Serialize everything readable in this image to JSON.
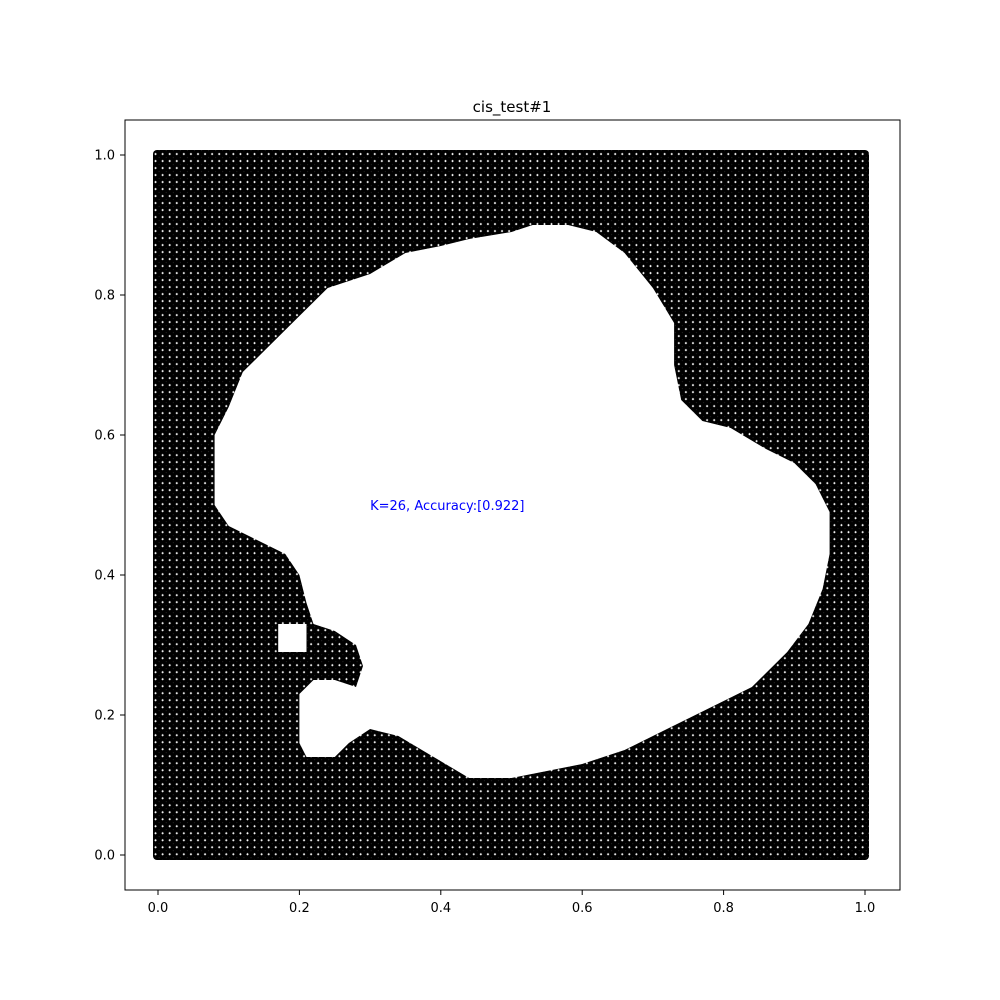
{
  "chart_data": {
    "type": "scatter",
    "title": "cis_test#1",
    "xlabel": "",
    "ylabel": "",
    "xlim": [
      -0.05,
      1.05
    ],
    "ylim": [
      -0.05,
      1.05
    ],
    "grid": false,
    "x_ticks": [
      "0.0",
      "0.2",
      "0.4",
      "0.6",
      "0.8",
      "1.0"
    ],
    "y_ticks": [
      "0.0",
      "0.2",
      "0.4",
      "0.6",
      "0.8",
      "1.0"
    ],
    "annotation": {
      "text": "K=26, Accuracy:[0.922]",
      "x": 0.3,
      "y": 0.5,
      "color": "#0000ff"
    },
    "description_of_series": {
      "class_black": "#000000",
      "class_white": "#ffffff",
      "grid_step": 0.01,
      "grid_range": [
        0.0,
        1.0
      ]
    },
    "boundary_white_region": [
      [
        0.08,
        0.6
      ],
      [
        0.1,
        0.64
      ],
      [
        0.12,
        0.69
      ],
      [
        0.15,
        0.72
      ],
      [
        0.2,
        0.77
      ],
      [
        0.24,
        0.81
      ],
      [
        0.3,
        0.83
      ],
      [
        0.35,
        0.86
      ],
      [
        0.4,
        0.87
      ],
      [
        0.44,
        0.88
      ],
      [
        0.5,
        0.89
      ],
      [
        0.53,
        0.9
      ],
      [
        0.58,
        0.9
      ],
      [
        0.62,
        0.89
      ],
      [
        0.66,
        0.86
      ],
      [
        0.7,
        0.81
      ],
      [
        0.73,
        0.76
      ],
      [
        0.73,
        0.7
      ],
      [
        0.74,
        0.65
      ],
      [
        0.77,
        0.62
      ],
      [
        0.81,
        0.61
      ],
      [
        0.86,
        0.58
      ],
      [
        0.9,
        0.56
      ],
      [
        0.93,
        0.53
      ],
      [
        0.95,
        0.49
      ],
      [
        0.95,
        0.43
      ],
      [
        0.94,
        0.38
      ],
      [
        0.92,
        0.33
      ],
      [
        0.89,
        0.29
      ],
      [
        0.84,
        0.24
      ],
      [
        0.78,
        0.21
      ],
      [
        0.72,
        0.18
      ],
      [
        0.66,
        0.15
      ],
      [
        0.6,
        0.13
      ],
      [
        0.55,
        0.12
      ],
      [
        0.5,
        0.11
      ],
      [
        0.44,
        0.11
      ],
      [
        0.39,
        0.14
      ],
      [
        0.34,
        0.17
      ],
      [
        0.3,
        0.18
      ],
      [
        0.27,
        0.16
      ],
      [
        0.25,
        0.14
      ],
      [
        0.21,
        0.14
      ],
      [
        0.2,
        0.16
      ],
      [
        0.2,
        0.23
      ],
      [
        0.22,
        0.25
      ],
      [
        0.25,
        0.25
      ],
      [
        0.28,
        0.24
      ],
      [
        0.29,
        0.27
      ],
      [
        0.28,
        0.3
      ],
      [
        0.25,
        0.32
      ],
      [
        0.22,
        0.33
      ],
      [
        0.21,
        0.36
      ],
      [
        0.2,
        0.4
      ],
      [
        0.18,
        0.43
      ],
      [
        0.14,
        0.45
      ],
      [
        0.1,
        0.47
      ],
      [
        0.08,
        0.5
      ]
    ],
    "white_island": [
      [
        0.17,
        0.29
      ],
      [
        0.17,
        0.33
      ],
      [
        0.21,
        0.33
      ],
      [
        0.21,
        0.29
      ]
    ]
  }
}
